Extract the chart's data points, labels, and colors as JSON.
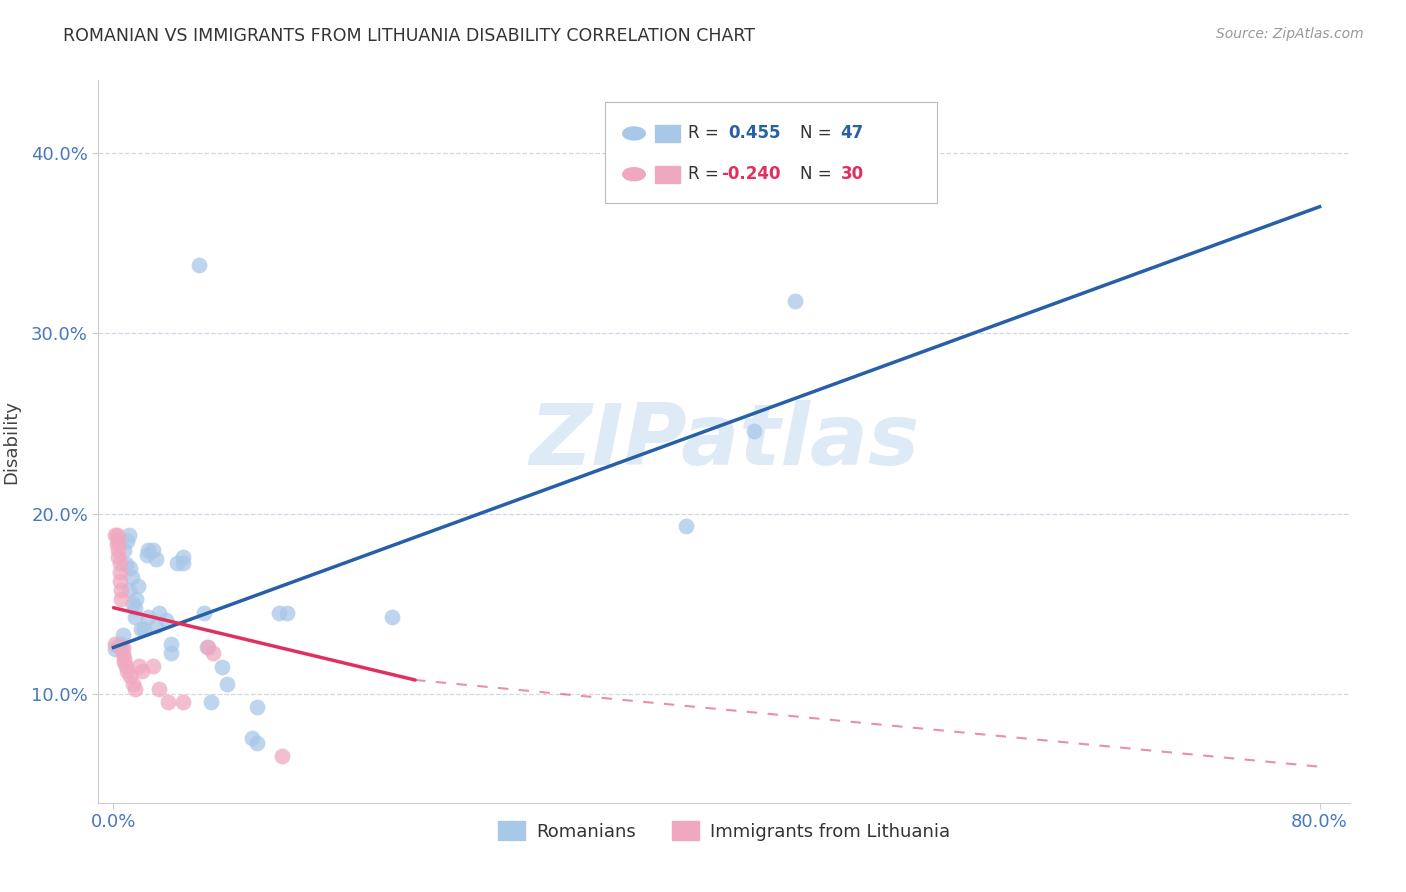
{
  "title": "ROMANIAN VS IMMIGRANTS FROM LITHUANIA DISABILITY CORRELATION CHART",
  "source": "Source: ZipAtlas.com",
  "ylabel_label": "Disability",
  "legend_labels": [
    "Romanians",
    "Immigrants from Lithuania"
  ],
  "r_romanian": 0.455,
  "n_romanian": 47,
  "r_lithuania": -0.24,
  "n_lithuania": 30,
  "watermark": "ZIPatlas",
  "blue_color": "#a8c8e8",
  "pink_color": "#f0a8c0",
  "blue_line_color": "#2860a8",
  "pink_line_color": "#e03060",
  "blue_scatter": [
    [
      0.001,
      0.125
    ],
    [
      0.003,
      0.127
    ],
    [
      0.004,
      0.126
    ],
    [
      0.005,
      0.128
    ],
    [
      0.006,
      0.133
    ],
    [
      0.007,
      0.18
    ],
    [
      0.008,
      0.172
    ],
    [
      0.009,
      0.185
    ],
    [
      0.01,
      0.188
    ],
    [
      0.01,
      0.158
    ],
    [
      0.011,
      0.17
    ],
    [
      0.012,
      0.165
    ],
    [
      0.013,
      0.15
    ],
    [
      0.014,
      0.148
    ],
    [
      0.014,
      0.143
    ],
    [
      0.015,
      0.153
    ],
    [
      0.016,
      0.16
    ],
    [
      0.018,
      0.136
    ],
    [
      0.02,
      0.136
    ],
    [
      0.022,
      0.177
    ],
    [
      0.023,
      0.18
    ],
    [
      0.023,
      0.143
    ],
    [
      0.026,
      0.18
    ],
    [
      0.028,
      0.175
    ],
    [
      0.028,
      0.138
    ],
    [
      0.03,
      0.145
    ],
    [
      0.035,
      0.141
    ],
    [
      0.038,
      0.128
    ],
    [
      0.038,
      0.123
    ],
    [
      0.042,
      0.173
    ],
    [
      0.046,
      0.176
    ],
    [
      0.046,
      0.173
    ],
    [
      0.06,
      0.145
    ],
    [
      0.062,
      0.126
    ],
    [
      0.065,
      0.096
    ],
    [
      0.072,
      0.115
    ],
    [
      0.075,
      0.106
    ],
    [
      0.095,
      0.093
    ],
    [
      0.11,
      0.145
    ],
    [
      0.115,
      0.145
    ],
    [
      0.185,
      0.143
    ],
    [
      0.38,
      0.193
    ],
    [
      0.425,
      0.246
    ],
    [
      0.452,
      0.318
    ],
    [
      0.057,
      0.338
    ],
    [
      0.092,
      0.076
    ],
    [
      0.095,
      0.073
    ]
  ],
  "pink_scatter": [
    [
      0.001,
      0.188
    ],
    [
      0.002,
      0.188
    ],
    [
      0.002,
      0.183
    ],
    [
      0.003,
      0.185
    ],
    [
      0.003,
      0.18
    ],
    [
      0.003,
      0.176
    ],
    [
      0.004,
      0.173
    ],
    [
      0.004,
      0.168
    ],
    [
      0.004,
      0.163
    ],
    [
      0.005,
      0.158
    ],
    [
      0.005,
      0.153
    ],
    [
      0.006,
      0.126
    ],
    [
      0.006,
      0.123
    ],
    [
      0.007,
      0.12
    ],
    [
      0.007,
      0.118
    ],
    [
      0.008,
      0.116
    ],
    [
      0.009,
      0.113
    ],
    [
      0.011,
      0.11
    ],
    [
      0.013,
      0.106
    ],
    [
      0.014,
      0.103
    ],
    [
      0.017,
      0.116
    ],
    [
      0.019,
      0.113
    ],
    [
      0.026,
      0.116
    ],
    [
      0.03,
      0.103
    ],
    [
      0.036,
      0.096
    ],
    [
      0.046,
      0.096
    ],
    [
      0.063,
      0.126
    ],
    [
      0.066,
      0.123
    ],
    [
      0.112,
      0.066
    ],
    [
      0.001,
      0.128
    ]
  ],
  "blue_line": [
    [
      0.0,
      0.126
    ],
    [
      0.8,
      0.37
    ]
  ],
  "pink_line_solid": [
    [
      0.0,
      0.148
    ],
    [
      0.2,
      0.108
    ]
  ],
  "pink_line_dashed": [
    [
      0.2,
      0.108
    ],
    [
      0.8,
      0.06
    ]
  ],
  "xlim": [
    -0.01,
    0.82
  ],
  "ylim": [
    0.04,
    0.44
  ],
  "xticks": [
    0.0,
    0.8
  ],
  "yticks": [
    0.1,
    0.2,
    0.3,
    0.4
  ],
  "xtick_labels": [
    "0.0%",
    "80.0%"
  ],
  "ytick_labels": [
    "10.0%",
    "20.0%",
    "30.0%",
    "40.0%"
  ],
  "tick_color": "#4878c0",
  "grid_color": "#d0d8e8",
  "spine_color": "#cccccc"
}
